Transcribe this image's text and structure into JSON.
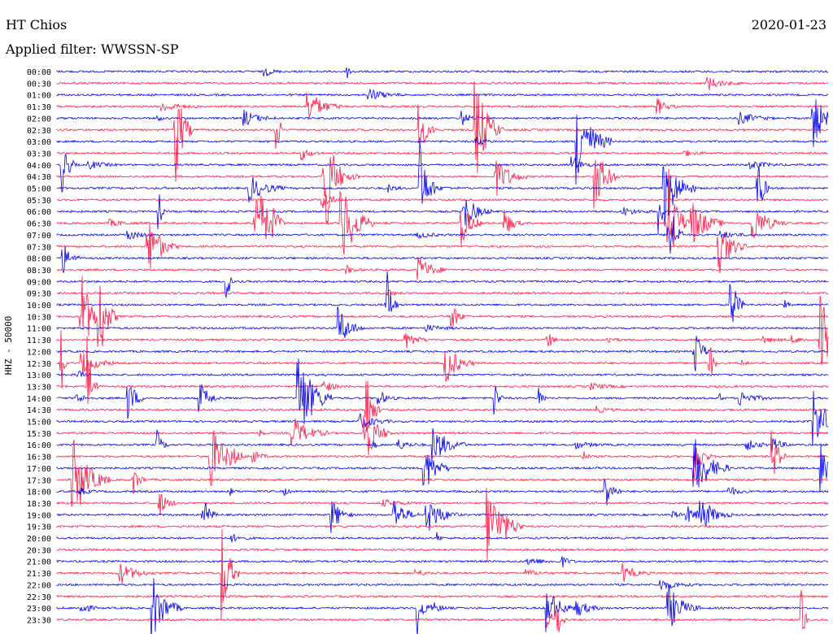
{
  "header": {
    "station": "HT Chios",
    "date": "2020-01-23",
    "filter_label": "Applied filter: WWSSN-SP"
  },
  "chart_data": {
    "type": "line",
    "title": "HT Chios",
    "ylabel": "HHZ - 50000",
    "row_interval_minutes": 30,
    "row_labels": [
      "00:00",
      "00:30",
      "01:00",
      "01:30",
      "02:00",
      "02:30",
      "03:00",
      "03:30",
      "04:00",
      "04:30",
      "05:00",
      "05:30",
      "06:00",
      "06:30",
      "07:00",
      "07:30",
      "08:00",
      "08:30",
      "09:00",
      "09:30",
      "10:00",
      "10:30",
      "11:00",
      "11:30",
      "12:00",
      "12:30",
      "13:00",
      "13:30",
      "14:00",
      "14:30",
      "15:00",
      "15:30",
      "16:00",
      "16:30",
      "17:00",
      "17:30",
      "18:00",
      "18:30",
      "19:00",
      "19:30",
      "20:00",
      "20:30",
      "21:00",
      "21:30",
      "22:00",
      "22:30",
      "23:00",
      "23:30"
    ],
    "trace_colors": [
      "#0000ee",
      "#ff1744"
    ],
    "grid": false,
    "legend": "none"
  }
}
